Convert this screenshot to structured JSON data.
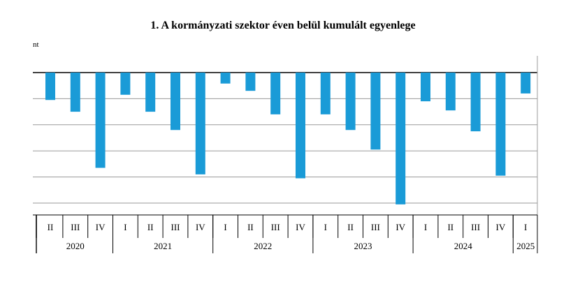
{
  "chart_data": {
    "type": "bar",
    "title": "1. A kormányzati szektor éven belül kumulált egyenlege",
    "ylabel": "nt",
    "xlabel": "",
    "color": "#1a9bd7",
    "ylim": [
      -5.6,
      0
    ],
    "gridlines": [
      0,
      -1,
      -2,
      -3,
      -4,
      -5
    ],
    "grid": true,
    "categories": [
      "II",
      "III",
      "IV",
      "I",
      "II",
      "III",
      "IV",
      "I",
      "II",
      "III",
      "IV",
      "I",
      "II",
      "III",
      "IV",
      "I",
      "II",
      "III",
      "IV",
      "I"
    ],
    "years": [
      {
        "label": "2020",
        "count": 3
      },
      {
        "label": "2021",
        "count": 4
      },
      {
        "label": "2022",
        "count": 4
      },
      {
        "label": "2023",
        "count": 4
      },
      {
        "label": "2024",
        "count": 4
      },
      {
        "label": "2025",
        "count": 1
      }
    ],
    "values": [
      -1.05,
      -1.5,
      -3.65,
      -0.85,
      -1.5,
      -2.2,
      -3.9,
      -0.42,
      -0.7,
      -1.6,
      -4.05,
      -1.6,
      -2.2,
      -2.95,
      -5.05,
      -1.1,
      -1.45,
      -2.25,
      -3.95,
      -0.8
    ]
  }
}
